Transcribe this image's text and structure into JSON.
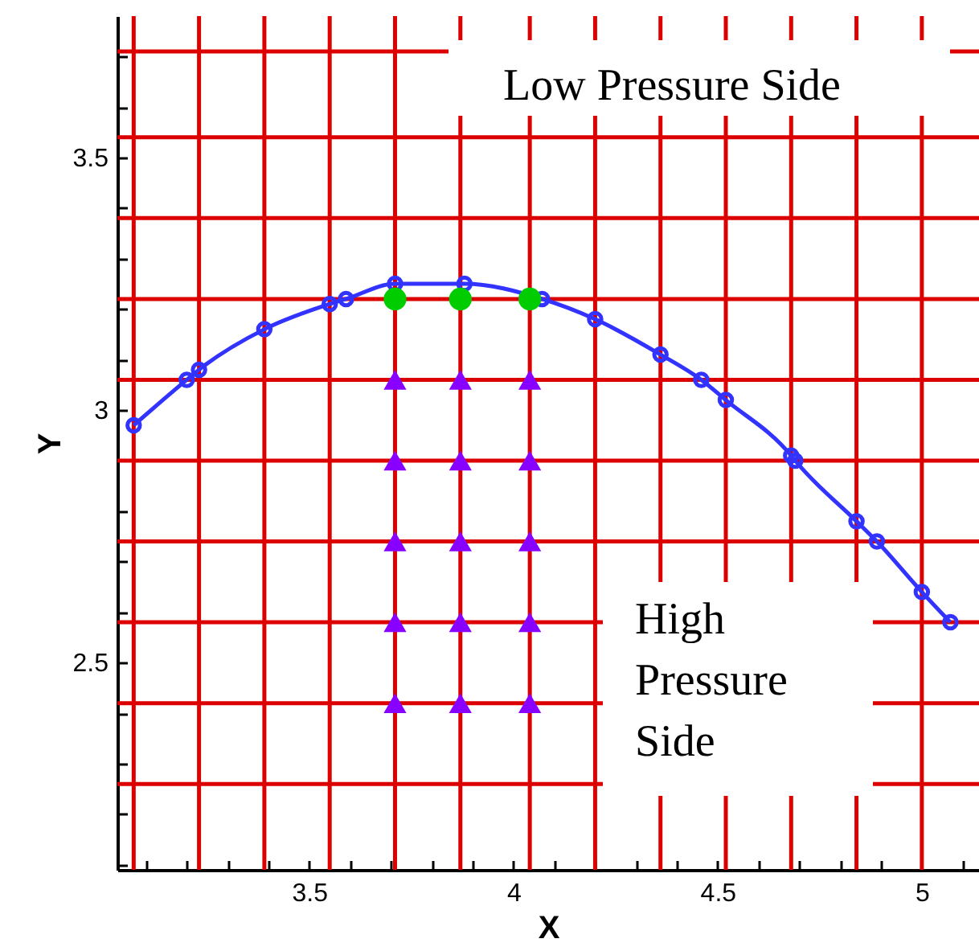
{
  "chart_data": {
    "type": "line",
    "xlabel": "X",
    "ylabel": "Y",
    "xlim": [
      3.03,
      5.14
    ],
    "ylim": [
      2.09,
      3.78
    ],
    "xticks": [
      {
        "value": 3.1,
        "label": null
      },
      {
        "value": 3.2,
        "label": null
      },
      {
        "value": 3.3,
        "label": null
      },
      {
        "value": 3.4,
        "label": null
      },
      3.5,
      {
        "value": 3.6,
        "label": null
      },
      {
        "value": 3.7,
        "label": null
      },
      {
        "value": 3.8,
        "label": null
      },
      {
        "value": 3.9,
        "label": null
      },
      4,
      {
        "value": 4.1,
        "label": null
      },
      {
        "value": 4.2,
        "label": null
      },
      {
        "value": 4.3,
        "label": null
      },
      {
        "value": 4.4,
        "label": null
      },
      4.5,
      {
        "value": 4.6,
        "label": null
      },
      {
        "value": 4.7,
        "label": null
      },
      {
        "value": 4.8,
        "label": null
      },
      {
        "value": 4.9,
        "label": null
      },
      5,
      {
        "value": 5.1,
        "label": null
      }
    ],
    "yticks": [
      {
        "value": 2.1,
        "label": null
      },
      {
        "value": 2.2,
        "label": null
      },
      {
        "value": 2.3,
        "label": null
      },
      {
        "value": 2.4,
        "label": null
      },
      2.5,
      {
        "value": 2.6,
        "label": null
      },
      {
        "value": 2.7,
        "label": null
      },
      {
        "value": 2.8,
        "label": null
      },
      {
        "value": 2.9,
        "label": null
      },
      3,
      {
        "value": 3.1,
        "label": null
      },
      {
        "value": 3.2,
        "label": null
      },
      {
        "value": 3.3,
        "label": null
      },
      {
        "value": 3.4,
        "label": null
      },
      3.5,
      {
        "value": 3.6,
        "label": null
      },
      {
        "value": 3.7,
        "label": null
      }
    ],
    "grid": false,
    "series": [
      {
        "type": "line",
        "color": "#3333ff",
        "marker": "circle",
        "x": [
          3.07,
          3.2,
          3.23,
          3.39,
          3.55,
          3.59,
          3.71,
          3.88,
          4.07,
          4.2,
          4.36,
          4.46,
          4.52,
          4.68,
          4.69,
          4.84,
          4.89,
          5.0,
          5.07
        ],
        "values": [
          2.97,
          3.06,
          3.08,
          3.16,
          3.21,
          3.22,
          3.25,
          3.25,
          3.22,
          3.18,
          3.11,
          3.06,
          3.02,
          2.91,
          2.9,
          2.78,
          2.74,
          2.64,
          2.58
        ]
      },
      {
        "type": "scatter",
        "color": "#00cc00",
        "marker": "circle",
        "x": [
          3.71,
          3.87,
          4.04
        ],
        "values": [
          3.22,
          3.22,
          3.22
        ]
      },
      {
        "type": "scatter",
        "color": "#8800ff",
        "marker": "triangle",
        "x": [
          3.71,
          3.87,
          4.04,
          3.71,
          3.87,
          4.04,
          3.71,
          3.87,
          4.04,
          3.71,
          3.87,
          4.04,
          3.71,
          3.87,
          4.04
        ],
        "values": [
          3.06,
          3.06,
          3.06,
          2.9,
          2.9,
          2.9,
          2.74,
          2.74,
          2.74,
          2.58,
          2.58,
          2.58,
          2.42,
          2.42,
          2.42
        ]
      }
    ],
    "ref_lines": [
      {
        "axis": "x",
        "value": 3.07,
        "color": "#dd0000"
      },
      {
        "axis": "x",
        "value": 3.23,
        "color": "#dd0000"
      },
      {
        "axis": "x",
        "value": 3.39,
        "color": "#dd0000"
      },
      {
        "axis": "x",
        "value": 3.55,
        "color": "#dd0000"
      },
      {
        "axis": "x",
        "value": 3.71,
        "color": "#dd0000"
      },
      {
        "axis": "x",
        "value": 3.87,
        "color": "#dd0000"
      },
      {
        "axis": "x",
        "value": 4.04,
        "color": "#dd0000"
      },
      {
        "axis": "x",
        "value": 4.2,
        "color": "#dd0000"
      },
      {
        "axis": "x",
        "value": 4.36,
        "color": "#dd0000"
      },
      {
        "axis": "x",
        "value": 4.52,
        "color": "#dd0000"
      },
      {
        "axis": "x",
        "value": 4.68,
        "color": "#dd0000"
      },
      {
        "axis": "x",
        "value": 4.84,
        "color": "#dd0000"
      },
      {
        "axis": "x",
        "value": 5.0,
        "color": "#dd0000"
      },
      {
        "axis": "y",
        "value": 3.71,
        "color": "#dd0000"
      },
      {
        "axis": "y",
        "value": 3.54,
        "color": "#dd0000"
      },
      {
        "axis": "y",
        "value": 3.38,
        "color": "#dd0000"
      },
      {
        "axis": "y",
        "value": 3.22,
        "color": "#dd0000"
      },
      {
        "axis": "y",
        "value": 3.06,
        "color": "#dd0000"
      },
      {
        "axis": "y",
        "value": 2.9,
        "color": "#dd0000"
      },
      {
        "axis": "y",
        "value": 2.74,
        "color": "#dd0000"
      },
      {
        "axis": "y",
        "value": 2.58,
        "color": "#dd0000"
      },
      {
        "axis": "y",
        "value": 2.42,
        "color": "#dd0000"
      },
      {
        "axis": "y",
        "value": 2.26,
        "color": "#dd0000"
      }
    ],
    "annotations": [
      "Low Pressure Side",
      "High Pressure Side"
    ]
  }
}
